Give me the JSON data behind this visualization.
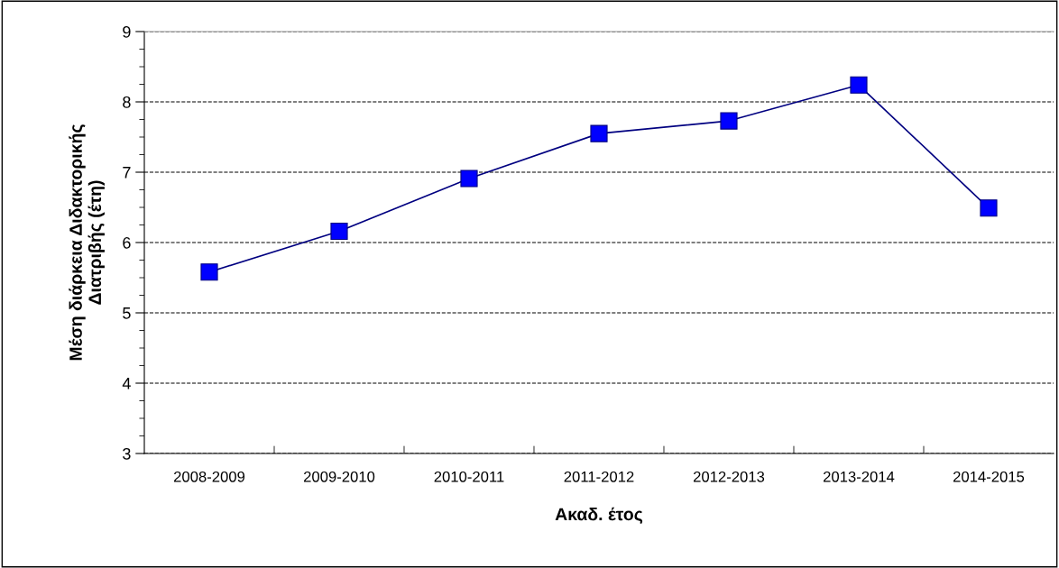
{
  "chart_data": {
    "type": "line",
    "xlabel": "Ακαδ. έτος",
    "ylabel": "Μέση διάρκεια Διδακτορικής\nΔιατριβής (έτη)",
    "categories": [
      "2008-2009",
      "2009-2010",
      "2010-2011",
      "2011-2012",
      "2012-2013",
      "2013-2014",
      "2014-2015"
    ],
    "series": [
      {
        "color": "#0000ff",
        "values": [
          5.58,
          6.16,
          6.91,
          7.55,
          7.73,
          8.24,
          6.49
        ]
      }
    ],
    "ylim": [
      3,
      9
    ],
    "yticks": [
      3,
      4,
      5,
      6,
      7,
      8,
      9
    ],
    "grid": "y",
    "marker": "square",
    "line_style": "solid",
    "legend": false
  }
}
